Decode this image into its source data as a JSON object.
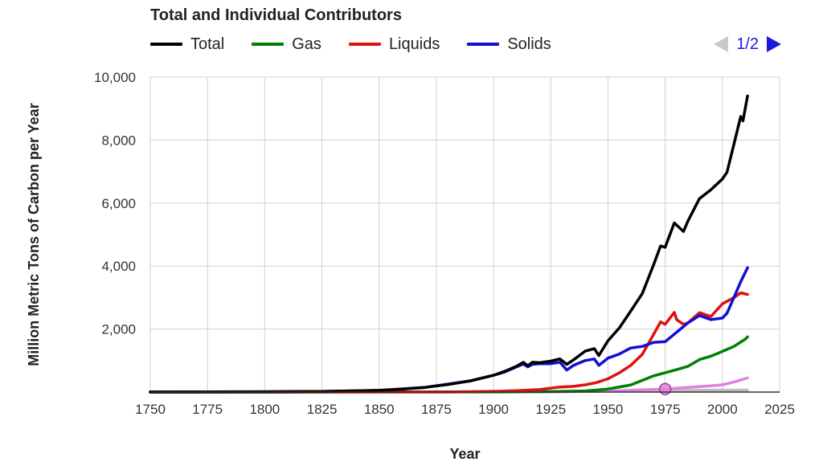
{
  "chart_data": {
    "type": "line",
    "title": "Total and Individual Contributors",
    "xlabel": "Year",
    "ylabel": "Million Metric Tons of Carbon per Year",
    "xlim": [
      1750,
      2025
    ],
    "ylim": [
      0,
      10000
    ],
    "x_ticks": [
      "1750",
      "1775",
      "1800",
      "1825",
      "1850",
      "1875",
      "1900",
      "1925",
      "1950",
      "1975",
      "2000",
      "2025"
    ],
    "y_ticks": [
      "2,000",
      "4,000",
      "6,000",
      "8,000",
      "10,000"
    ],
    "y_tick_values": [
      2000,
      4000,
      6000,
      8000,
      10000
    ],
    "x_tick_values": [
      1750,
      1775,
      1800,
      1825,
      1850,
      1875,
      1900,
      1925,
      1950,
      1975,
      2000,
      2025
    ],
    "grid": true,
    "legend_position": "top",
    "pager": "1/2",
    "series": [
      {
        "name": "Total",
        "color": "#000000",
        "x": [
          1750,
          1800,
          1825,
          1850,
          1860,
          1870,
          1880,
          1890,
          1900,
          1905,
          1910,
          1913,
          1915,
          1917,
          1920,
          1925,
          1929,
          1932,
          1935,
          1940,
          1944,
          1946,
          1950,
          1955,
          1960,
          1965,
          1970,
          1973,
          1975,
          1979,
          1983,
          1985,
          1990,
          1995,
          2000,
          2002,
          2005,
          2008,
          2009,
          2011
        ],
        "y": [
          3,
          10,
          20,
          54,
          91,
          147,
          236,
          357,
          534,
          663,
          819,
          943,
          836,
          946,
          932,
          983,
          1053,
          881,
          1025,
          1299,
          1380,
          1160,
          1630,
          2040,
          2577,
          3130,
          4053,
          4640,
          4596,
          5370,
          5100,
          5438,
          6144,
          6426,
          6765,
          6977,
          7863,
          8749,
          8611,
          9400
        ]
      },
      {
        "name": "Gas",
        "color": "#008000",
        "x": [
          1750,
          1900,
          1925,
          1940,
          1950,
          1960,
          1970,
          1975,
          1980,
          1985,
          1990,
          1995,
          2000,
          2005,
          2010,
          2011
        ],
        "y": [
          0,
          3,
          15,
          36,
          97,
          227,
          515,
          614,
          712,
          820,
          1030,
          1140,
          1290,
          1450,
          1680,
          1750
        ]
      },
      {
        "name": "Liquids",
        "color": "#e01010",
        "x": [
          1750,
          1880,
          1900,
          1910,
          1920,
          1929,
          1935,
          1940,
          1945,
          1950,
          1955,
          1960,
          1965,
          1970,
          1973,
          1975,
          1979,
          1980,
          1983,
          1985,
          1990,
          1995,
          2000,
          2005,
          2008,
          2011
        ],
        "y": [
          0,
          3,
          23,
          43,
          80,
          160,
          180,
          230,
          300,
          423,
          612,
          849,
          1200,
          1839,
          2230,
          2150,
          2530,
          2300,
          2150,
          2200,
          2520,
          2400,
          2800,
          3000,
          3150,
          3100
        ]
      },
      {
        "name": "Solids",
        "color": "#1010d0",
        "x": [
          1750,
          1800,
          1825,
          1850,
          1870,
          1890,
          1900,
          1905,
          1910,
          1913,
          1915,
          1917,
          1920,
          1925,
          1929,
          1932,
          1935,
          1940,
          1944,
          1946,
          1950,
          1955,
          1960,
          1965,
          1970,
          1975,
          1980,
          1985,
          1990,
          1995,
          2000,
          2002,
          2005,
          2008,
          2011
        ],
        "y": [
          3,
          10,
          20,
          54,
          147,
          357,
          534,
          640,
          800,
          890,
          800,
          880,
          900,
          900,
          950,
          700,
          850,
          1000,
          1050,
          850,
          1080,
          1210,
          1400,
          1450,
          1580,
          1600,
          1900,
          2200,
          2430,
          2300,
          2350,
          2500,
          3000,
          3500,
          3950
        ]
      },
      {
        "name": "",
        "color": "#e080e0",
        "x": [
          1750,
          1930,
          1950,
          1965,
          1975,
          1985,
          1995,
          2000,
          2005,
          2011
        ],
        "y": [
          0,
          10,
          30,
          70,
          95,
          150,
          200,
          230,
          320,
          450
        ]
      },
      {
        "name": "",
        "color": "#bdbdbd",
        "x": [
          1750,
          1925,
          1950,
          1975,
          2000,
          2011
        ],
        "y": [
          0,
          10,
          30,
          50,
          60,
          60
        ]
      }
    ],
    "marker": {
      "x": 1975,
      "y": 95,
      "color": "#e080e0"
    }
  }
}
